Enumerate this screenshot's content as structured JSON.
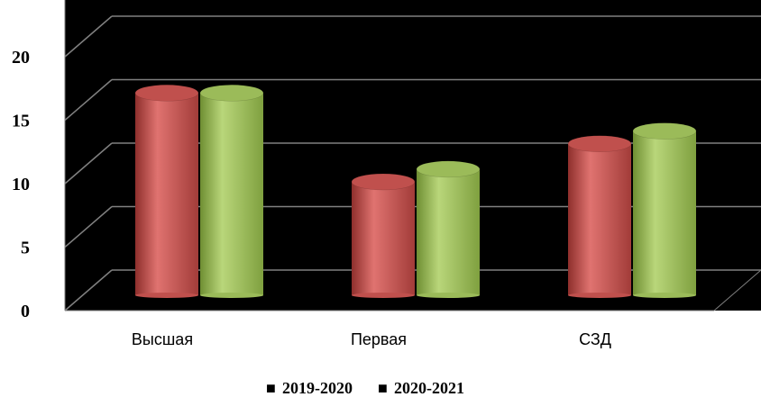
{
  "chart_data": {
    "type": "bar",
    "categories": [
      "Высшая",
      "Первая",
      "СЗД"
    ],
    "series": [
      {
        "name": "2019-2020",
        "values": [
          17,
          10,
          13
        ],
        "color": "#c0504d"
      },
      {
        "name": "2020-2021",
        "values": [
          17,
          11,
          14
        ],
        "color": "#9bbb59"
      }
    ],
    "yticks": [
      "0",
      "5",
      "10",
      "15",
      "20"
    ],
    "ylim": [
      0,
      20
    ],
    "grid": true,
    "background": "#000000",
    "legend_position": "bottom",
    "legend_marker": "■"
  }
}
